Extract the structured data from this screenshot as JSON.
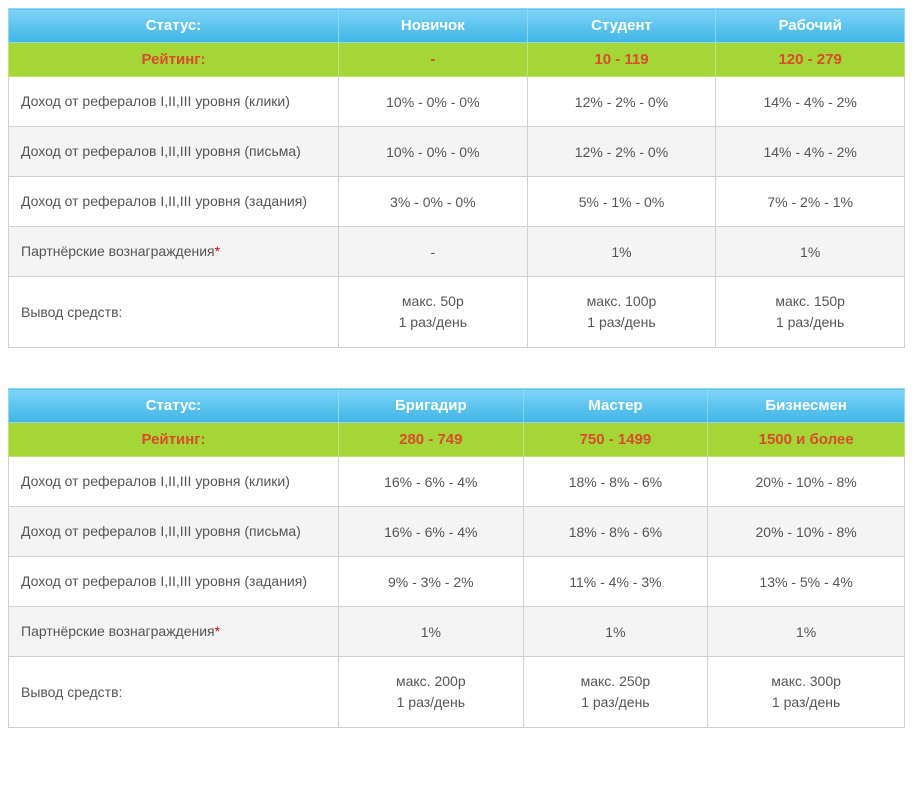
{
  "colors": {
    "header_gradient_start": "#7fd4f7",
    "header_gradient_end": "#42b5e8",
    "header_text": "#ffffff",
    "rating_bg": "#a4d636",
    "rating_text": "#d94b2a",
    "row_text": "#555555",
    "row_even_bg": "#f4f4f4",
    "row_odd_bg": "#ffffff",
    "border": "#d0d0d0",
    "star": "#cc0000"
  },
  "labels": {
    "status": "Статус:",
    "rating": "Рейтинг:"
  },
  "row_labels": {
    "clicks": "Доход от рефералов I,II,III уровня (клики)",
    "letters": "Доход от рефералов I,II,III уровня (письма)",
    "tasks": "Доход от рефералов I,II,III уровня (задания)",
    "partner": "Партнёрские вознаграждения",
    "withdraw": "Вывод средств:"
  },
  "table1": {
    "statuses": [
      "Новичок",
      "Студент",
      "Рабочий"
    ],
    "ratings": [
      "-",
      "10 - 119",
      "120 - 279"
    ],
    "clicks": [
      "10% - 0% - 0%",
      "12% - 2% - 0%",
      "14% - 4% - 2%"
    ],
    "letters": [
      "10% - 0% - 0%",
      "12% - 2% - 0%",
      "14% - 4% - 2%"
    ],
    "tasks": [
      "3% - 0% - 0%",
      "5% - 1% - 0%",
      "7% - 2% - 1%"
    ],
    "partner": [
      "-",
      "1%",
      "1%"
    ],
    "withdraw_l1": [
      "макс. 50р",
      "макс. 100р",
      "макс. 150р"
    ],
    "withdraw_l2": [
      "1 раз/день",
      "1 раз/день",
      "1 раз/день"
    ]
  },
  "table2": {
    "statuses": [
      "Бригадир",
      "Мастер",
      "Бизнесмен"
    ],
    "ratings": [
      "280 - 749",
      "750 - 1499",
      "1500 и более"
    ],
    "clicks": [
      "16% - 6% - 4%",
      "18% - 8% - 6%",
      "20% - 10% - 8%"
    ],
    "letters": [
      "16% - 6% - 4%",
      "18% - 8% - 6%",
      "20% - 10% - 8%"
    ],
    "tasks": [
      "9% - 3% - 2%",
      "11% - 4% - 3%",
      "13% - 5% - 4%"
    ],
    "partner": [
      "1%",
      "1%",
      "1%"
    ],
    "withdraw_l1": [
      "макс. 200р",
      "макс. 250р",
      "макс. 300р"
    ],
    "withdraw_l2": [
      "1 раз/день",
      "1 раз/день",
      "1 раз/день"
    ]
  }
}
